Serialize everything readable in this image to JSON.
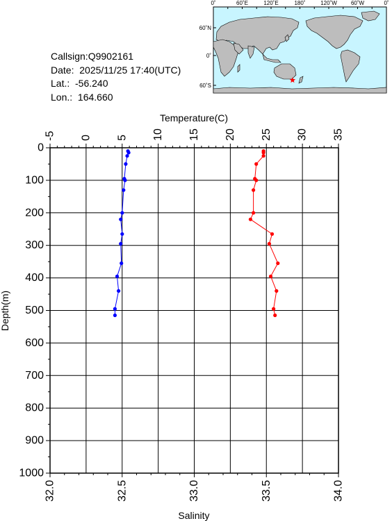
{
  "info": {
    "callsign": "Callsign:Q9902161",
    "date": "Date:  2025/11/25 17:40(UTC)",
    "lat": "Lat.:  -56.240",
    "lon": "Lon.:  164.660"
  },
  "map": {
    "top_labels": [
      "0˚",
      "60˚E",
      "120˚E",
      "180˚",
      "120˚W",
      "60˚W",
      "0˚"
    ],
    "side_labels": [
      "60˚N",
      "0˚",
      "60˚S"
    ],
    "ocean_color": "#c8f5ff",
    "land_color": "#bdbdbd",
    "marker_color": "#ff0000",
    "marker_icon": "star-icon",
    "marker_lon": 164.66,
    "marker_lat": -56.24
  },
  "chart_data": {
    "type": "line",
    "temperature_axis": {
      "label": "Temperature(C)",
      "range": [
        -5,
        35
      ],
      "ticks": [
        "-5",
        "0",
        "5",
        "10",
        "15",
        "20",
        "25",
        "30",
        "35"
      ]
    },
    "salinity_axis": {
      "label": "Salinity",
      "range": [
        32.0,
        34.0
      ],
      "ticks": [
        "32.0",
        "32.5",
        "33.0",
        "33.5",
        "34.0"
      ]
    },
    "depth_axis": {
      "label": "Depth(m)",
      "range": [
        0,
        1000
      ],
      "ticks": [
        "0",
        "100",
        "200",
        "300",
        "400",
        "500",
        "600",
        "700",
        "800",
        "900",
        "1000"
      ]
    },
    "grid": true,
    "series": [
      {
        "axis": "temperature",
        "color": "#0000ff",
        "points": [
          [
            5.8,
            10
          ],
          [
            5.9,
            15
          ],
          [
            5.7,
            25
          ],
          [
            5.5,
            50
          ],
          [
            5.3,
            95
          ],
          [
            5.4,
            100
          ],
          [
            5.2,
            130
          ],
          [
            5.0,
            200
          ],
          [
            4.8,
            220
          ],
          [
            5.0,
            265
          ],
          [
            4.8,
            295
          ],
          [
            4.9,
            355
          ],
          [
            4.3,
            395
          ],
          [
            4.5,
            440
          ],
          [
            4.0,
            495
          ],
          [
            4.0,
            515
          ]
        ]
      },
      {
        "axis": "salinity",
        "color": "#ff0000",
        "points": [
          [
            33.48,
            10
          ],
          [
            33.48,
            15
          ],
          [
            33.48,
            25
          ],
          [
            33.43,
            50
          ],
          [
            33.42,
            95
          ],
          [
            33.43,
            100
          ],
          [
            33.41,
            130
          ],
          [
            33.41,
            200
          ],
          [
            33.39,
            220
          ],
          [
            33.54,
            265
          ],
          [
            33.52,
            295
          ],
          [
            33.58,
            355
          ],
          [
            33.53,
            395
          ],
          [
            33.57,
            440
          ],
          [
            33.55,
            495
          ],
          [
            33.56,
            515
          ]
        ]
      }
    ]
  }
}
